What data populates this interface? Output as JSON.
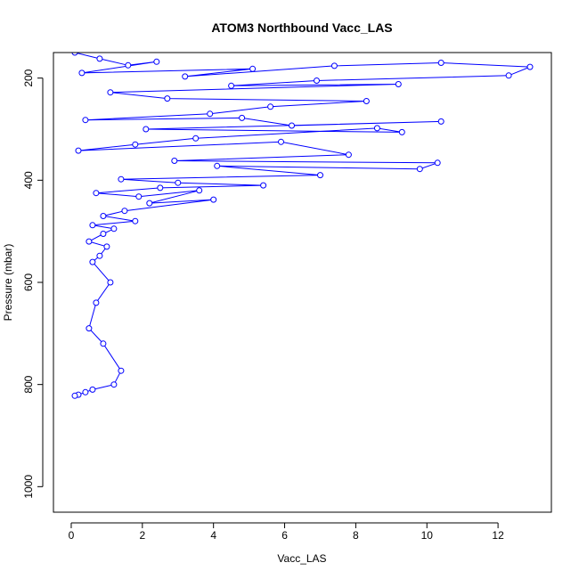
{
  "chart_data": {
    "type": "scatter",
    "title": "ATOM3 Northbound Vacc_LAS",
    "xlabel": "Vacc_LAS",
    "ylabel": "Pressure (mbar)",
    "xlim": [
      -0.5,
      13.5
    ],
    "ylim": [
      1050,
      150
    ],
    "y_reversed": true,
    "xticks": [
      0,
      2,
      4,
      6,
      8,
      10,
      12
    ],
    "yticks": [
      200,
      400,
      600,
      800,
      1000
    ],
    "color": "#0000ff",
    "marker": "open-circle",
    "connect_points": true,
    "grid": false,
    "legend": "none",
    "series": [
      {
        "x": [
          0.1,
          0.8,
          1.6,
          2.4,
          0.3,
          5.1,
          3.2,
          7.4,
          10.4,
          12.9,
          12.3,
          6.9,
          4.5,
          9.2,
          1.1,
          2.7,
          8.3,
          5.6,
          3.9,
          0.4,
          4.8,
          6.2,
          10.4,
          2.1,
          9.3,
          8.6,
          3.5,
          1.8,
          0.2,
          5.9,
          7.8,
          2.9,
          10.3,
          9.8,
          4.1,
          7.0,
          1.4,
          3.0,
          5.4,
          2.5,
          0.7,
          1.9,
          3.6,
          2.2,
          4.0,
          1.5,
          0.9,
          1.8,
          0.6,
          1.2,
          0.9,
          0.5,
          1.0,
          0.8,
          0.6,
          1.1,
          0.7,
          0.5,
          0.9,
          1.4,
          1.2,
          0.6,
          0.4,
          0.2,
          0.1
        ],
        "y": [
          150,
          162,
          175,
          168,
          190,
          182,
          197,
          176,
          170,
          178,
          195,
          205,
          215,
          212,
          228,
          240,
          245,
          256,
          270,
          282,
          278,
          293,
          285,
          300,
          306,
          298,
          318,
          330,
          342,
          325,
          350,
          362,
          366,
          378,
          372,
          390,
          398,
          405,
          410,
          415,
          425,
          432,
          420,
          445,
          438,
          460,
          470,
          480,
          488,
          495,
          505,
          520,
          530,
          548,
          560,
          600,
          640,
          690,
          720,
          773,
          800,
          810,
          815,
          820,
          822
        ]
      }
    ]
  }
}
